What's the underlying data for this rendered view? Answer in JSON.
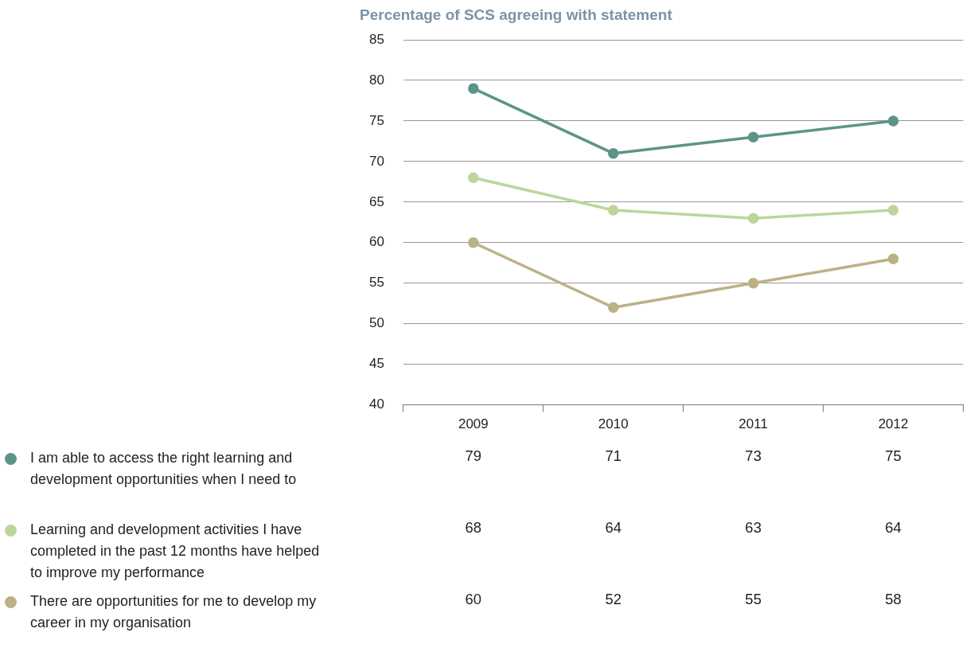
{
  "chart_data": {
    "type": "line",
    "title": "Percentage of SCS agreeing with statement",
    "categories": [
      "2009",
      "2010",
      "2011",
      "2012"
    ],
    "series": [
      {
        "name": "I am able to access the right learning and development opportunities when I need to",
        "color": "#5b9589",
        "values": [
          79,
          71,
          73,
          75
        ]
      },
      {
        "name": "Learning and development activities I have completed in the past 12 months have helped to improve my performance",
        "color": "#bbd69c",
        "values": [
          68,
          64,
          63,
          64
        ]
      },
      {
        "name": "There are opportunities for me to develop my career in my organisation",
        "color": "#bcb186",
        "values": [
          60,
          52,
          55,
          58
        ]
      }
    ],
    "ylim": [
      40,
      85
    ],
    "yticks": [
      40,
      45,
      50,
      55,
      60,
      65,
      70,
      75,
      80,
      85
    ],
    "grid": "y",
    "legend": "bottom left",
    "marker": "circle",
    "line_style": "solid",
    "data_labels": true
  }
}
